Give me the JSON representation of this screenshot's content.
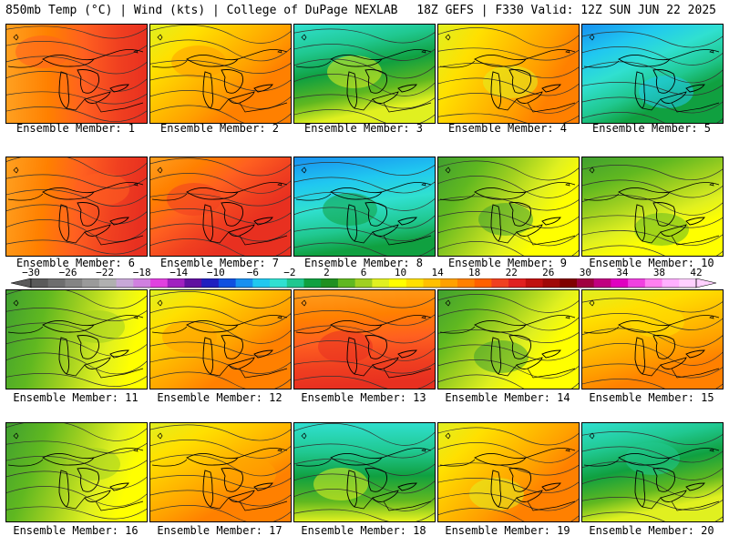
{
  "header": {
    "left": "850mb Temp (°C) | Wind (kts) | College of DuPage NEXLAB",
    "right": "18Z GEFS | F330 Valid: 12Z SUN JUN 22 2025"
  },
  "caption_prefix": "Ensemble Member: ",
  "members": [
    {
      "label": "Ensemble Member: 1",
      "theme": "hot"
    },
    {
      "label": "Ensemble Member: 2",
      "theme": "warm"
    },
    {
      "label": "Ensemble Member: 3",
      "theme": "cool"
    },
    {
      "label": "Ensemble Member: 4",
      "theme": "warm"
    },
    {
      "label": "Ensemble Member: 5",
      "theme": "cold"
    },
    {
      "label": "Ensemble Member: 6",
      "theme": "hot"
    },
    {
      "label": "Ensemble Member: 7",
      "theme": "hot"
    },
    {
      "label": "Ensemble Member: 8",
      "theme": "cold"
    },
    {
      "label": "Ensemble Member: 9",
      "theme": "mild"
    },
    {
      "label": "Ensemble Member: 10",
      "theme": "mild"
    },
    {
      "label": "Ensemble Member: 11",
      "theme": "mild"
    },
    {
      "label": "Ensemble Member: 12",
      "theme": "warm"
    },
    {
      "label": "Ensemble Member: 13",
      "theme": "hot"
    },
    {
      "label": "Ensemble Member: 14",
      "theme": "mild"
    },
    {
      "label": "Ensemble Member: 15",
      "theme": "warm"
    },
    {
      "label": "Ensemble Member: 16",
      "theme": "mild"
    },
    {
      "label": "Ensemble Member: 17",
      "theme": "warm"
    },
    {
      "label": "Ensemble Member: 18",
      "theme": "cool"
    },
    {
      "label": "Ensemble Member: 19",
      "theme": "warm"
    },
    {
      "label": "Ensemble Member: 20",
      "theme": "cool"
    }
  ],
  "colorbar": {
    "labels": [
      "-30",
      "-26",
      "-22",
      "-18",
      "-14",
      "-10",
      "-6",
      "-2",
      "2",
      "6",
      "10",
      "14",
      "18",
      "22",
      "26",
      "30",
      "34",
      "38",
      "42"
    ],
    "colors": [
      "#5a5a5a",
      "#6e6e6e",
      "#848484",
      "#9a9a9a",
      "#b0b0b0",
      "#c8a8d8",
      "#d080e0",
      "#e040e0",
      "#a020c0",
      "#6010a0",
      "#2020c0",
      "#1050e0",
      "#1890f0",
      "#20c8f0",
      "#30e0d0",
      "#20c890",
      "#10a040",
      "#209020",
      "#60b820",
      "#a0d020",
      "#e0f020",
      "#ffff00",
      "#ffe000",
      "#ffc000",
      "#ffa000",
      "#ff8000",
      "#ff6000",
      "#f04020",
      "#e02020",
      "#c01010",
      "#a00808",
      "#800000",
      "#a00040",
      "#c00080",
      "#e000c0",
      "#f040e0",
      "#ff80f0",
      "#ffb0ff",
      "#ffd0ff"
    ]
  },
  "theme_colors": {
    "hot": [
      "#ffa020",
      "#ff8000",
      "#ff6020",
      "#f04020",
      "#e83020"
    ],
    "warm": [
      "#e0f020",
      "#ffe000",
      "#ffc000",
      "#ffa000",
      "#ff8000"
    ],
    "mild": [
      "#40a030",
      "#60b820",
      "#a0d020",
      "#e0f020",
      "#ffff00"
    ],
    "cool": [
      "#30e0d0",
      "#20c890",
      "#10a040",
      "#60b820",
      "#e0f020"
    ],
    "cold": [
      "#1890f0",
      "#20c8f0",
      "#30e0d0",
      "#20c890",
      "#10a040"
    ]
  }
}
